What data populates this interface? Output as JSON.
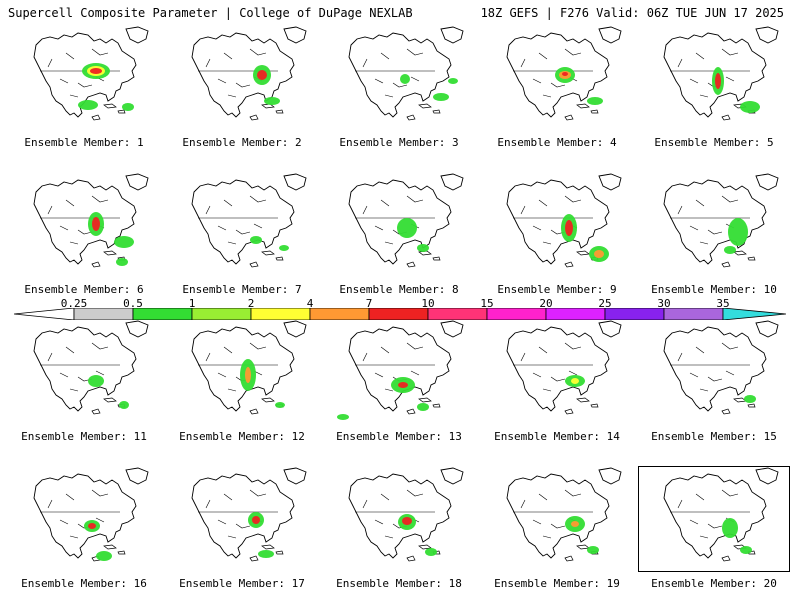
{
  "header": {
    "title_left": "Supercell Composite Parameter | College of DuPage NEXLAB",
    "title_right": "18Z GEFS | F276 Valid: 06Z TUE JUN 17 2025"
  },
  "colorbar": {
    "ticks": [
      "0.25",
      "0.5",
      "1",
      "2",
      "4",
      "7",
      "10",
      "15",
      "20",
      "25",
      "30",
      "35"
    ],
    "colors": [
      "#ffffff",
      "#cccccc",
      "#33dd33",
      "#99ee33",
      "#ffff33",
      "#ff9933",
      "#ee2222",
      "#ff3377",
      "#ff22cc",
      "#dd22ff",
      "#8822ee",
      "#aa66dd",
      "#33dddd"
    ]
  },
  "panels": [
    {
      "label": "Ensemble Member: 1"
    },
    {
      "label": "Ensemble Member: 2"
    },
    {
      "label": "Ensemble Member: 3"
    },
    {
      "label": "Ensemble Member: 4"
    },
    {
      "label": "Ensemble Member: 5"
    },
    {
      "label": "Ensemble Member: 6"
    },
    {
      "label": "Ensemble Member: 7"
    },
    {
      "label": "Ensemble Member: 8"
    },
    {
      "label": "Ensemble Member: 9"
    },
    {
      "label": "Ensemble Member: 10"
    },
    {
      "label": "Ensemble Member: 11"
    },
    {
      "label": "Ensemble Member: 12"
    },
    {
      "label": "Ensemble Member: 13"
    },
    {
      "label": "Ensemble Member: 14"
    },
    {
      "label": "Ensemble Member: 15"
    },
    {
      "label": "Ensemble Member: 16"
    },
    {
      "label": "Ensemble Member: 17"
    },
    {
      "label": "Ensemble Member: 18"
    },
    {
      "label": "Ensemble Member: 19"
    },
    {
      "label": "Ensemble Member: 20"
    }
  ]
}
